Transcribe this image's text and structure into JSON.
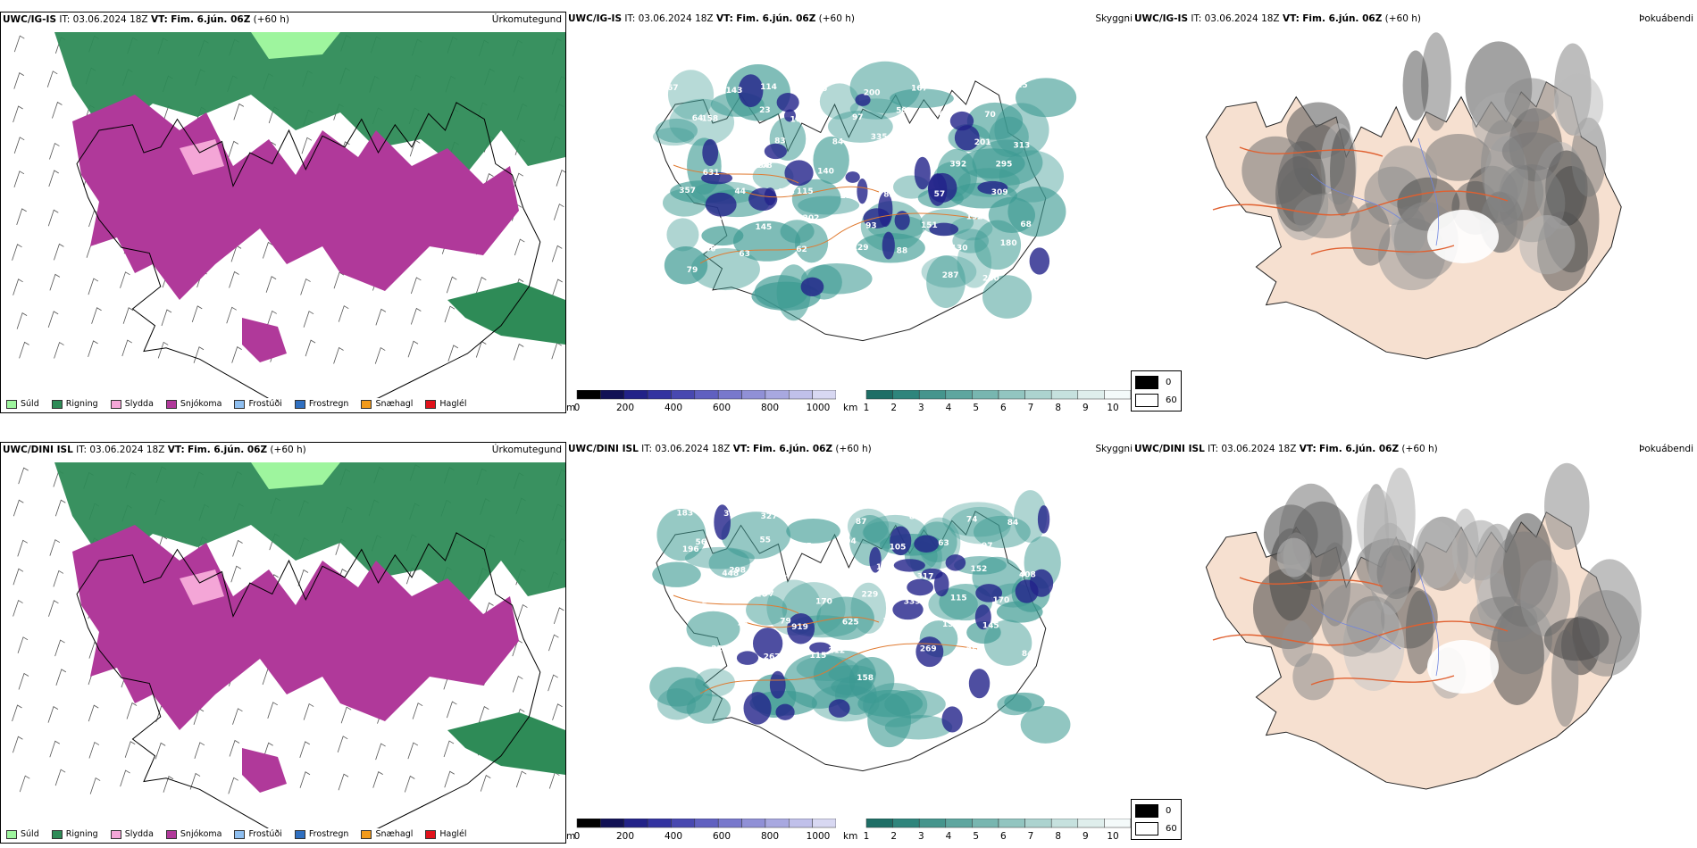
{
  "precip_legend": [
    {
      "label": "Súld",
      "color": "#9ef59e"
    },
    {
      "label": "Rigning",
      "color": "#2e8b57"
    },
    {
      "label": "Slydda",
      "color": "#f4a6d7"
    },
    {
      "label": "Snjókoma",
      "color": "#b0399a"
    },
    {
      "label": "Frostúði",
      "color": "#8fbff0"
    },
    {
      "label": "Frostregn",
      "color": "#2f6fc0"
    },
    {
      "label": "Snæhagl",
      "color": "#f29a1a"
    },
    {
      "label": "Haglél",
      "color": "#e0121b"
    }
  ],
  "cloud_base_bar": {
    "unit": "m",
    "ticks": [
      "0",
      "200",
      "400",
      "600",
      "800",
      "1000"
    ]
  },
  "visibility_bar": {
    "unit": "km",
    "ticks": [
      "1",
      "2",
      "3",
      "4",
      "5",
      "6",
      "7",
      "8",
      "9",
      "10"
    ]
  },
  "fog_legend": {
    "black": "0",
    "white": "60"
  },
  "rows": [
    {
      "model": "UWC/IG-IS",
      "it_label": "IT:",
      "it_value": "03.06.2024 18Z",
      "vt_label": "VT:",
      "vt_value": "Fim. 6.jún. 06Z",
      "lead": "(+60 h)",
      "fields": [
        "Úrkomutegund",
        "Skyggni",
        "Þokuábendi"
      ],
      "ceiling_labels": [
        "67",
        "143",
        "114",
        "76",
        "200",
        "167",
        "115",
        "125",
        "158",
        "23",
        "105",
        "97",
        "59",
        "49",
        "70",
        "64",
        "81",
        "83",
        "84",
        "335",
        "279",
        "201",
        "313",
        "193",
        "84",
        "140",
        "155",
        "93",
        "392",
        "295",
        "631",
        "308",
        "115",
        "223",
        "82",
        "57",
        "309",
        "357",
        "44",
        "183",
        "497",
        "93",
        "151",
        "192",
        "68",
        "83",
        "145",
        "202",
        "129",
        "88",
        "130",
        "180",
        "486",
        "63",
        "62",
        "52",
        "45",
        "287",
        "230",
        "79"
      ]
    },
    {
      "model": "UWC/DINI ISL",
      "it_label": "IT:",
      "it_value": "03.06.2024 18Z",
      "vt_label": "VT:",
      "vt_value": "Fim. 6.jún. 06Z",
      "lead": "(+60 h)",
      "fields": [
        "Úrkomutegund",
        "Skyggni",
        "Þokuábendi"
      ],
      "ceiling_labels": [
        "183",
        "33",
        "327",
        "129",
        "87",
        "88",
        "74",
        "84",
        "56",
        "55",
        "75",
        "104",
        "105",
        "63",
        "97",
        "196",
        "298",
        "11",
        "50",
        "134",
        "317",
        "152",
        "408",
        "448",
        "97",
        "170",
        "229",
        "339",
        "115",
        "170",
        "200",
        "126",
        "919",
        "625",
        "104",
        "152",
        "145",
        "58",
        "78",
        "79",
        "212",
        "142",
        "269",
        "254",
        "84",
        "226",
        "267",
        "115",
        "158",
        "267"
      ]
    }
  ],
  "colors": {
    "rain": "#2e8b57",
    "snow": "#b0399a",
    "sleet": "#f4a6d7",
    "drizzle": "#9ef59e",
    "vis_teal": "#3c9a92",
    "cloud_blue": "#22228a",
    "land": "#f6e0d0",
    "road": "#e06030"
  }
}
